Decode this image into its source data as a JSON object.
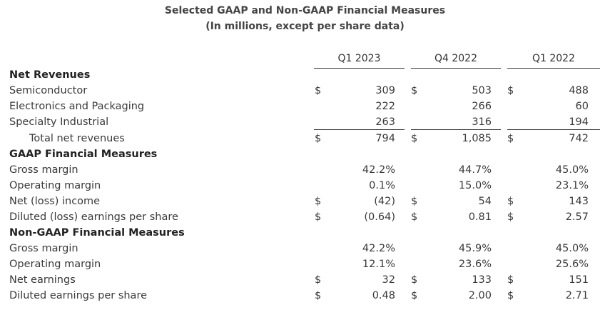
{
  "title": "Selected GAAP and Non-GAAP Financial Measures",
  "subtitle": "(In millions, except per share data)",
  "columns": [
    "Q1 2023",
    "Q4 2022",
    "Q1 2022"
  ],
  "sections": {
    "net_revenues": "Net Revenues",
    "gaap": "GAAP Financial Measures",
    "non_gaap": "Non-GAAP Financial Measures"
  },
  "rows": [
    {
      "label": "Semiconductor",
      "cur": [
        "$",
        "$",
        "$"
      ],
      "values": [
        "309",
        "503",
        "488"
      ]
    },
    {
      "label": "Electronics and Packaging",
      "cur": [
        "",
        "",
        ""
      ],
      "values": [
        "222",
        "266",
        "60"
      ]
    },
    {
      "label": "Specialty Industrial",
      "cur": [
        "",
        "",
        ""
      ],
      "values": [
        "263",
        "316",
        "194"
      ]
    },
    {
      "label": "Total net revenues",
      "cur": [
        "$",
        "$",
        "$"
      ],
      "values": [
        "794",
        "1,085",
        "742"
      ]
    },
    {
      "label": "Gross margin",
      "cur": [
        "",
        "",
        ""
      ],
      "values": [
        "42.2%",
        "44.7%",
        "45.0%"
      ]
    },
    {
      "label": "Operating margin",
      "cur": [
        "",
        "",
        ""
      ],
      "values": [
        "0.1%",
        "15.0%",
        "23.1%"
      ]
    },
    {
      "label": "Net (loss) income",
      "cur": [
        "$",
        "$",
        "$"
      ],
      "values": [
        "(42)",
        "54",
        "143"
      ]
    },
    {
      "label": "Diluted (loss) earnings per share",
      "cur": [
        "$",
        "$",
        "$"
      ],
      "values": [
        "(0.64)",
        "0.81",
        "2.57"
      ]
    },
    {
      "label": "Gross margin",
      "cur": [
        "",
        "",
        ""
      ],
      "values": [
        "42.2%",
        "45.9%",
        "45.0%"
      ]
    },
    {
      "label": "Operating margin",
      "cur": [
        "",
        "",
        ""
      ],
      "values": [
        "12.1%",
        "23.6%",
        "25.6%"
      ]
    },
    {
      "label": "Net earnings",
      "cur": [
        "$",
        "$",
        "$"
      ],
      "values": [
        "32",
        "133",
        "151"
      ]
    },
    {
      "label": "Diluted earnings per share",
      "cur": [
        "$",
        "$",
        "$"
      ],
      "values": [
        "0.48",
        "2.00",
        "2.71"
      ]
    }
  ]
}
